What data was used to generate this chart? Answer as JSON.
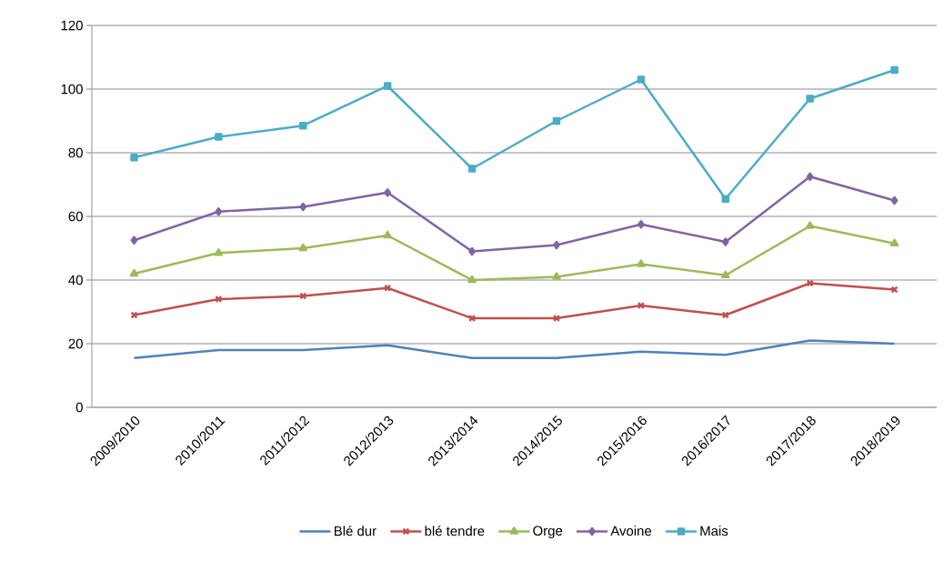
{
  "chart_data": {
    "type": "line",
    "categories": [
      "2009/2010",
      "2010/2011",
      "2011/2012",
      "2012/2013",
      "2013/2014",
      "2014/2015",
      "2015/2016",
      "2016/2017",
      "2017/2018",
      "2018/2019"
    ],
    "series": [
      {
        "name": "Blé dur",
        "color": "#4f81bd",
        "marker": "none",
        "values": [
          15.5,
          18,
          18,
          19.5,
          15.5,
          15.5,
          17.5,
          16.5,
          21,
          20
        ]
      },
      {
        "name": "blé tendre",
        "color": "#c0504d",
        "marker": "cross",
        "values": [
          29,
          34,
          35,
          37.5,
          28,
          28,
          32,
          29,
          39,
          37
        ]
      },
      {
        "name": "Orge",
        "color": "#9bbb59",
        "marker": "triangle",
        "values": [
          42,
          48.5,
          50,
          54,
          40,
          41,
          45,
          41.5,
          57,
          51.5
        ]
      },
      {
        "name": "Avoine",
        "color": "#8064a2",
        "marker": "diamond",
        "values": [
          52.5,
          61.5,
          63,
          67.5,
          49,
          51,
          57.5,
          52,
          72.5,
          65
        ]
      },
      {
        "name": "Mais",
        "color": "#4bacc6",
        "marker": "square",
        "values": [
          78.5,
          85,
          88.5,
          101,
          75,
          90,
          103,
          65.5,
          97,
          106
        ]
      }
    ],
    "ylim": [
      0,
      120
    ],
    "yticks": [
      0,
      20,
      40,
      60,
      80,
      100,
      120
    ],
    "grid": "y",
    "legend": "bottom"
  }
}
